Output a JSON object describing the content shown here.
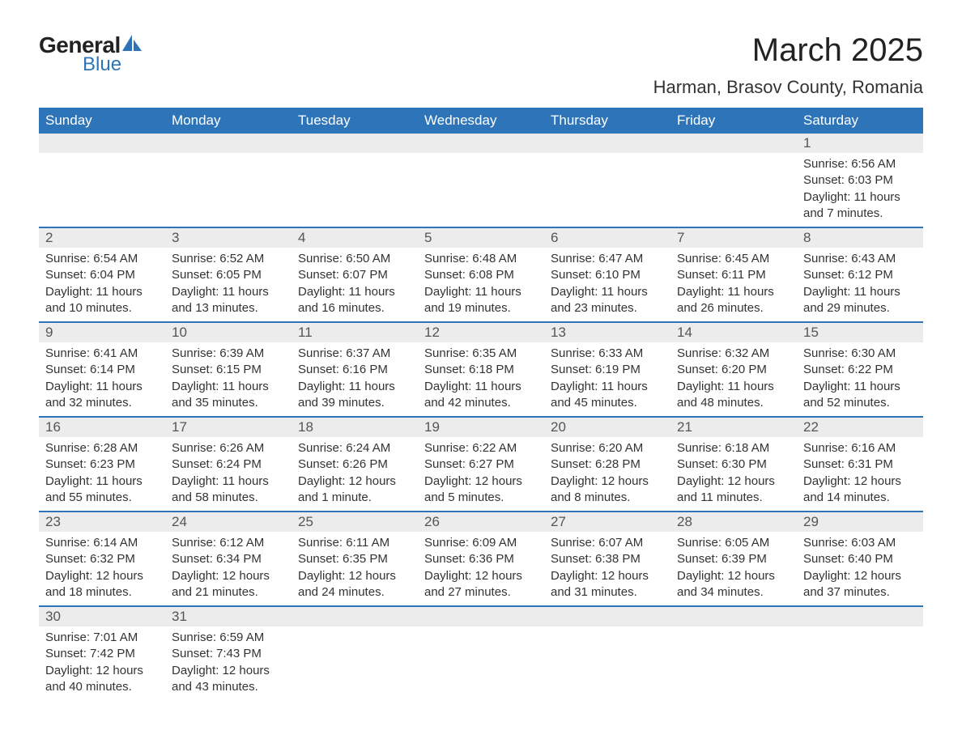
{
  "logo": {
    "text1": "General",
    "text2": "Blue",
    "sail_color": "#2d75b8"
  },
  "title": "March 2025",
  "location": "Harman, Brasov County, Romania",
  "colors": {
    "header_bg": "#2d75b8",
    "header_text": "#ffffff",
    "daynum_bg": "#ececec",
    "daynum_text": "#555555",
    "body_text": "#333333",
    "border": "#2d75b8"
  },
  "day_headers": [
    "Sunday",
    "Monday",
    "Tuesday",
    "Wednesday",
    "Thursday",
    "Friday",
    "Saturday"
  ],
  "weeks": [
    [
      null,
      null,
      null,
      null,
      null,
      null,
      {
        "n": "1",
        "sr": "6:56 AM",
        "ss": "6:03 PM",
        "dl": "11 hours and 7 minutes."
      }
    ],
    [
      {
        "n": "2",
        "sr": "6:54 AM",
        "ss": "6:04 PM",
        "dl": "11 hours and 10 minutes."
      },
      {
        "n": "3",
        "sr": "6:52 AM",
        "ss": "6:05 PM",
        "dl": "11 hours and 13 minutes."
      },
      {
        "n": "4",
        "sr": "6:50 AM",
        "ss": "6:07 PM",
        "dl": "11 hours and 16 minutes."
      },
      {
        "n": "5",
        "sr": "6:48 AM",
        "ss": "6:08 PM",
        "dl": "11 hours and 19 minutes."
      },
      {
        "n": "6",
        "sr": "6:47 AM",
        "ss": "6:10 PM",
        "dl": "11 hours and 23 minutes."
      },
      {
        "n": "7",
        "sr": "6:45 AM",
        "ss": "6:11 PM",
        "dl": "11 hours and 26 minutes."
      },
      {
        "n": "8",
        "sr": "6:43 AM",
        "ss": "6:12 PM",
        "dl": "11 hours and 29 minutes."
      }
    ],
    [
      {
        "n": "9",
        "sr": "6:41 AM",
        "ss": "6:14 PM",
        "dl": "11 hours and 32 minutes."
      },
      {
        "n": "10",
        "sr": "6:39 AM",
        "ss": "6:15 PM",
        "dl": "11 hours and 35 minutes."
      },
      {
        "n": "11",
        "sr": "6:37 AM",
        "ss": "6:16 PM",
        "dl": "11 hours and 39 minutes."
      },
      {
        "n": "12",
        "sr": "6:35 AM",
        "ss": "6:18 PM",
        "dl": "11 hours and 42 minutes."
      },
      {
        "n": "13",
        "sr": "6:33 AM",
        "ss": "6:19 PM",
        "dl": "11 hours and 45 minutes."
      },
      {
        "n": "14",
        "sr": "6:32 AM",
        "ss": "6:20 PM",
        "dl": "11 hours and 48 minutes."
      },
      {
        "n": "15",
        "sr": "6:30 AM",
        "ss": "6:22 PM",
        "dl": "11 hours and 52 minutes."
      }
    ],
    [
      {
        "n": "16",
        "sr": "6:28 AM",
        "ss": "6:23 PM",
        "dl": "11 hours and 55 minutes."
      },
      {
        "n": "17",
        "sr": "6:26 AM",
        "ss": "6:24 PM",
        "dl": "11 hours and 58 minutes."
      },
      {
        "n": "18",
        "sr": "6:24 AM",
        "ss": "6:26 PM",
        "dl": "12 hours and 1 minute."
      },
      {
        "n": "19",
        "sr": "6:22 AM",
        "ss": "6:27 PM",
        "dl": "12 hours and 5 minutes."
      },
      {
        "n": "20",
        "sr": "6:20 AM",
        "ss": "6:28 PM",
        "dl": "12 hours and 8 minutes."
      },
      {
        "n": "21",
        "sr": "6:18 AM",
        "ss": "6:30 PM",
        "dl": "12 hours and 11 minutes."
      },
      {
        "n": "22",
        "sr": "6:16 AM",
        "ss": "6:31 PM",
        "dl": "12 hours and 14 minutes."
      }
    ],
    [
      {
        "n": "23",
        "sr": "6:14 AM",
        "ss": "6:32 PM",
        "dl": "12 hours and 18 minutes."
      },
      {
        "n": "24",
        "sr": "6:12 AM",
        "ss": "6:34 PM",
        "dl": "12 hours and 21 minutes."
      },
      {
        "n": "25",
        "sr": "6:11 AM",
        "ss": "6:35 PM",
        "dl": "12 hours and 24 minutes."
      },
      {
        "n": "26",
        "sr": "6:09 AM",
        "ss": "6:36 PM",
        "dl": "12 hours and 27 minutes."
      },
      {
        "n": "27",
        "sr": "6:07 AM",
        "ss": "6:38 PM",
        "dl": "12 hours and 31 minutes."
      },
      {
        "n": "28",
        "sr": "6:05 AM",
        "ss": "6:39 PM",
        "dl": "12 hours and 34 minutes."
      },
      {
        "n": "29",
        "sr": "6:03 AM",
        "ss": "6:40 PM",
        "dl": "12 hours and 37 minutes."
      }
    ],
    [
      {
        "n": "30",
        "sr": "7:01 AM",
        "ss": "7:42 PM",
        "dl": "12 hours and 40 minutes."
      },
      {
        "n": "31",
        "sr": "6:59 AM",
        "ss": "7:43 PM",
        "dl": "12 hours and 43 minutes."
      },
      null,
      null,
      null,
      null,
      null
    ]
  ],
  "labels": {
    "sunrise": "Sunrise: ",
    "sunset": "Sunset: ",
    "daylight": "Daylight: "
  }
}
